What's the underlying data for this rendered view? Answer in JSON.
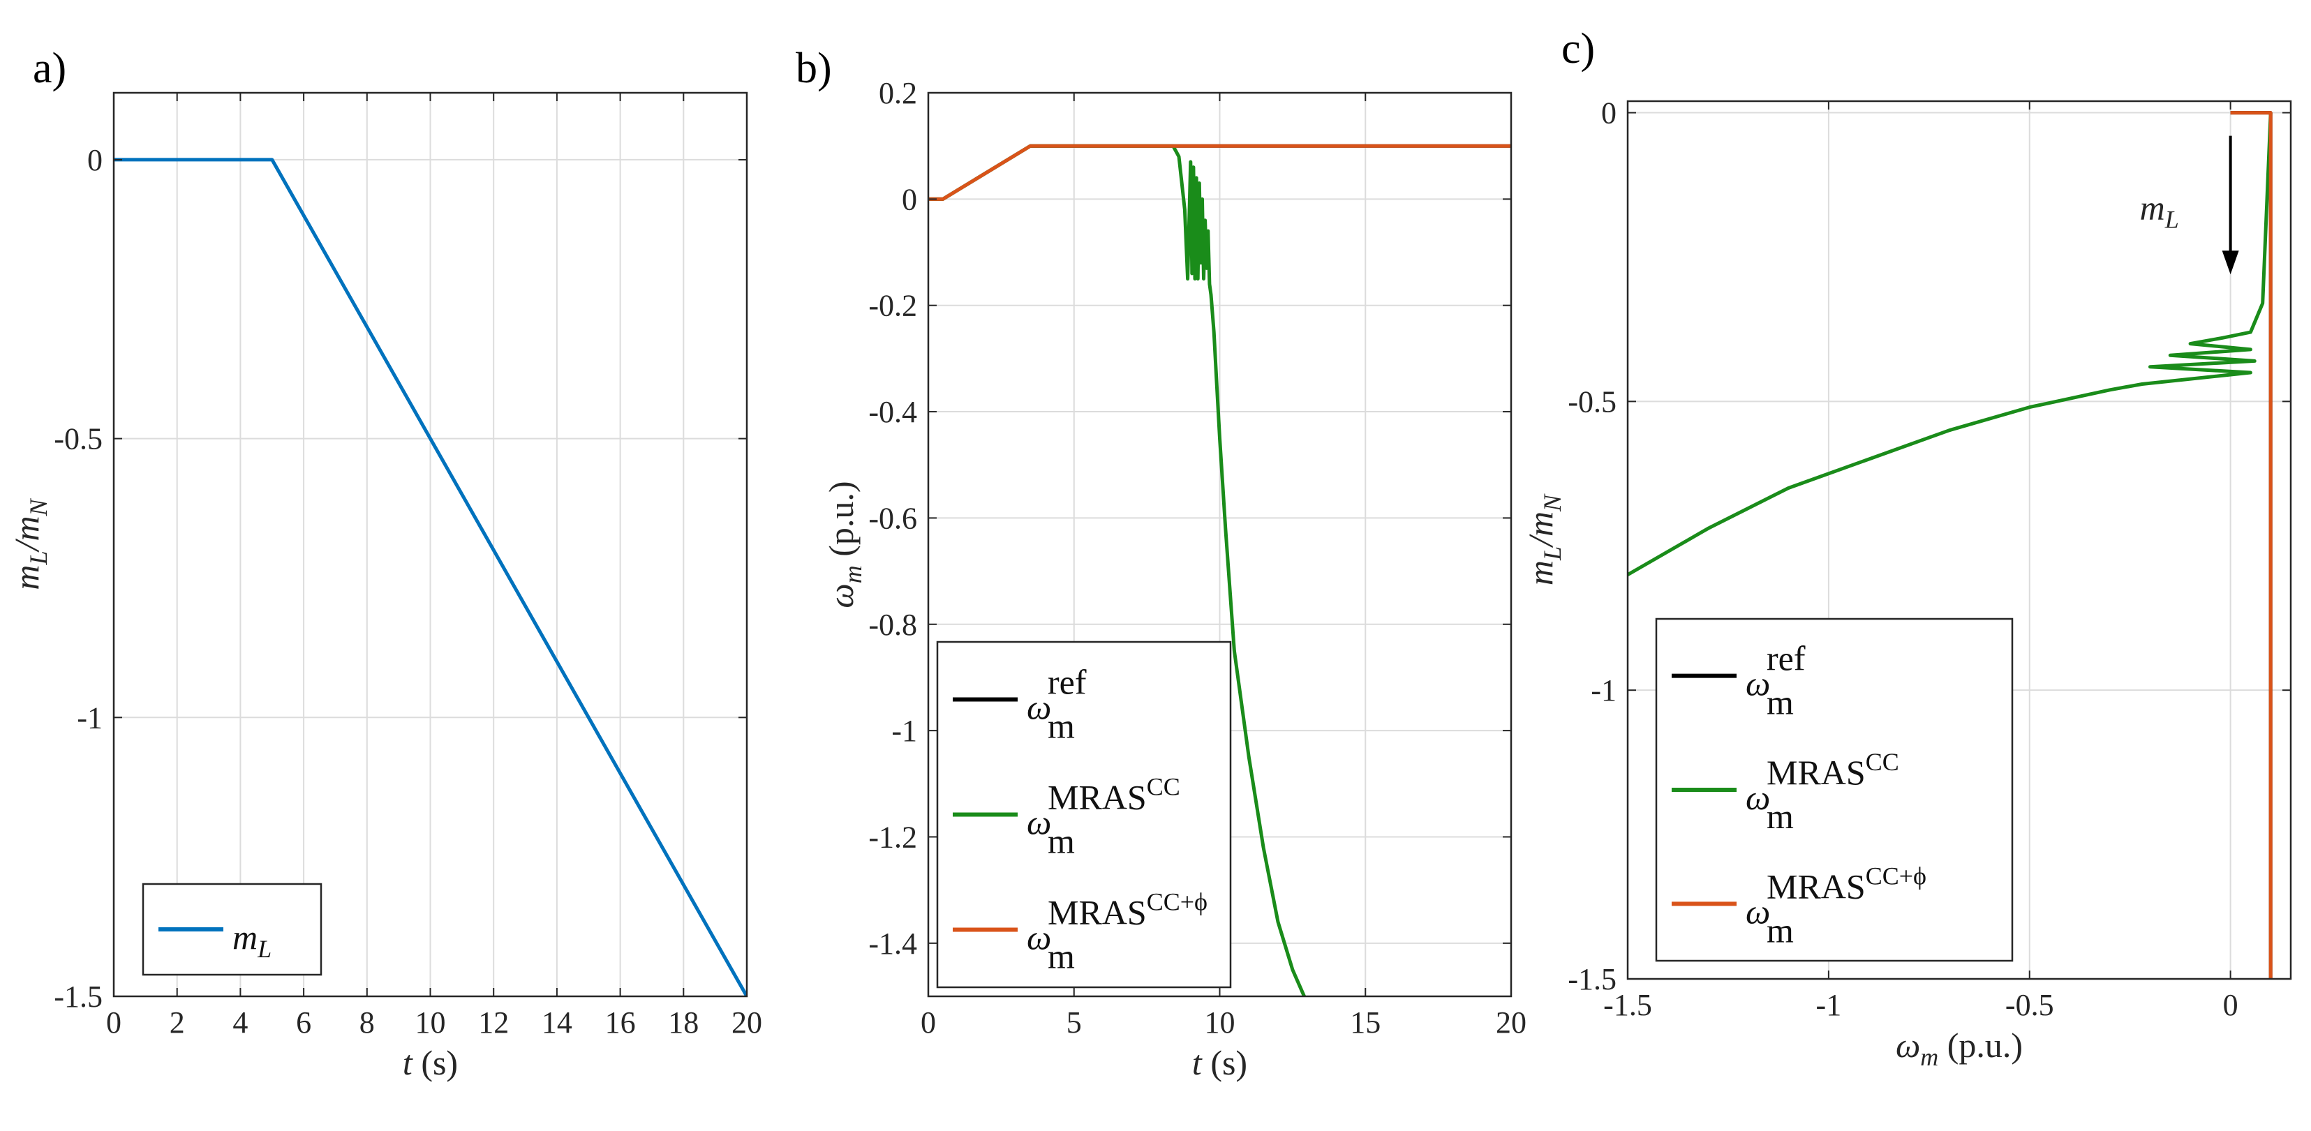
{
  "chart_data": [
    {
      "id": "a",
      "type": "line",
      "panel_label": "a)",
      "xlabel": {
        "var": "t",
        "unit": " (s)"
      },
      "ylabel": {
        "base": "m",
        "sub": "L",
        "mid": "/m",
        "sub2": "N"
      },
      "xlim": [
        0,
        20
      ],
      "ylim": [
        -1.5,
        0.12
      ],
      "xticks": [
        0,
        2,
        4,
        6,
        8,
        10,
        12,
        14,
        16,
        18,
        20
      ],
      "xtick_labels": [
        "0",
        "2",
        "4",
        "6",
        "8",
        "10",
        "12",
        "14",
        "16",
        "18",
        "20"
      ],
      "yticks": [
        0,
        -0.5,
        -1,
        -1.5
      ],
      "ytick_labels": [
        "0",
        "-0.5",
        "-1",
        "-1.5"
      ],
      "grid": true,
      "legend_position": "bottom-left",
      "series": [
        {
          "key": "mL",
          "name": "m_L",
          "label_main": "m",
          "label_sub": "L",
          "color": "#0072BD",
          "x": [
            0,
            5,
            20
          ],
          "y": [
            0,
            0,
            -1.5
          ]
        }
      ]
    },
    {
      "id": "b",
      "type": "line",
      "panel_label": "b)",
      "xlabel": {
        "var": "t",
        "unit": " (s)"
      },
      "ylabel": {
        "base": "ω",
        "sub": "m",
        "unit": " (p.u.)"
      },
      "xlim": [
        0,
        20
      ],
      "ylim": [
        -1.5,
        0.2
      ],
      "xticks": [
        0,
        5,
        10,
        15,
        20
      ],
      "xtick_labels": [
        "0",
        "5",
        "10",
        "15",
        "20"
      ],
      "yticks": [
        0.2,
        0,
        -0.2,
        -0.4,
        -0.6,
        -0.8,
        -1,
        -1.2,
        -1.4
      ],
      "ytick_labels": [
        "0.2",
        "0",
        "-0.2",
        "-0.4",
        "-0.6",
        "-0.8",
        "-1",
        "-1.2",
        "-1.4"
      ],
      "grid": true,
      "legend_position": "bottom-left",
      "series": [
        {
          "key": "ref",
          "name": "ω_m^ref",
          "label_main": "ω",
          "label_sub": "m",
          "label_sup": "ref",
          "label_sup2": "",
          "color": "#000000",
          "x": [
            0,
            0.5,
            3.5,
            20
          ],
          "y": [
            0,
            0,
            0.1,
            0.1
          ]
        },
        {
          "key": "cc",
          "name": "ω_m^MRAS^CC",
          "label_main": "ω",
          "label_sub": "m",
          "label_sup": "MRAS",
          "label_sup2": "CC",
          "color": "#1A8C1A",
          "x": [
            0,
            0.5,
            3.5,
            8.4,
            8.6,
            8.8,
            8.9,
            9.0,
            9.05,
            9.1,
            9.15,
            9.2,
            9.25,
            9.3,
            9.35,
            9.4,
            9.45,
            9.5,
            9.55,
            9.6,
            9.65,
            9.7,
            9.8,
            9.9,
            10.0,
            10.2,
            10.5,
            11.0,
            11.5,
            12.0,
            12.5,
            12.9
          ],
          "y": [
            0,
            0,
            0.1,
            0.1,
            0.08,
            -0.02,
            -0.15,
            0.07,
            -0.14,
            0.06,
            -0.15,
            0.04,
            -0.15,
            0.03,
            -0.12,
            0.0,
            -0.15,
            -0.04,
            -0.13,
            -0.06,
            -0.16,
            -0.18,
            -0.25,
            -0.35,
            -0.45,
            -0.62,
            -0.85,
            -1.05,
            -1.22,
            -1.36,
            -1.45,
            -1.5
          ]
        },
        {
          "key": "ccphi",
          "name": "ω_m^MRAS^CC+φ",
          "label_main": "ω",
          "label_sub": "m",
          "label_sup": "MRAS",
          "label_sup2": "CC+ϕ",
          "color": "#D95319",
          "x": [
            0,
            0.5,
            3.5,
            20
          ],
          "y": [
            0,
            0,
            0.1,
            0.1
          ]
        }
      ]
    },
    {
      "id": "c",
      "type": "line",
      "panel_label": "c)",
      "xlabel": {
        "var": "ω",
        "sub": "m",
        "unit": " (p.u.)"
      },
      "ylabel": {
        "base": "m",
        "sub": "L",
        "mid": "/m",
        "sub2": "N"
      },
      "xlim": [
        -1.5,
        0.15
      ],
      "ylim": [
        -1.5,
        0.02
      ],
      "xticks": [
        -1.5,
        -1,
        -0.5,
        0
      ],
      "xtick_labels": [
        "-1.5",
        "-1",
        "-0.5",
        "0"
      ],
      "yticks": [
        0,
        -0.5,
        -1,
        -1.5
      ],
      "ytick_labels": [
        "0",
        "-0.5",
        "-1",
        "-1.5"
      ],
      "grid": true,
      "legend_position": "bottom-left",
      "annotation": {
        "text_main": "m",
        "text_sub": "L",
        "arrow_x": 0.0,
        "arrow_y_from": -0.04,
        "arrow_y_to": -0.28
      },
      "series": [
        {
          "key": "ref",
          "name": "ω_m^ref",
          "label_main": "ω",
          "label_sub": "m",
          "label_sup": "ref",
          "label_sup2": "",
          "color": "#000000",
          "x": [
            0,
            0.1,
            0.1
          ],
          "y": [
            0,
            0,
            -1.5
          ]
        },
        {
          "key": "cc",
          "name": "ω_m^MRAS^CC",
          "label_main": "ω",
          "label_sub": "m",
          "label_sup": "MRAS",
          "label_sup2": "CC",
          "color": "#1A8C1A",
          "x": [
            0.1,
            0.08,
            0.05,
            -0.02,
            -0.1,
            0.05,
            -0.15,
            0.06,
            -0.2,
            0.05,
            -0.22,
            -0.3,
            -0.5,
            -0.7,
            -0.9,
            -1.1,
            -1.3,
            -1.5
          ],
          "y": [
            0,
            -0.33,
            -0.38,
            -0.39,
            -0.4,
            -0.41,
            -0.42,
            -0.43,
            -0.44,
            -0.45,
            -0.47,
            -0.48,
            -0.51,
            -0.55,
            -0.6,
            -0.65,
            -0.72,
            -0.8
          ]
        },
        {
          "key": "ccphi",
          "name": "ω_m^MRAS^CC+φ",
          "label_main": "ω",
          "label_sub": "m",
          "label_sup": "MRAS",
          "label_sup2": "CC+ϕ",
          "color": "#D95319",
          "x": [
            0,
            0.1,
            0.1
          ],
          "y": [
            0,
            0,
            -1.5
          ]
        }
      ]
    }
  ]
}
